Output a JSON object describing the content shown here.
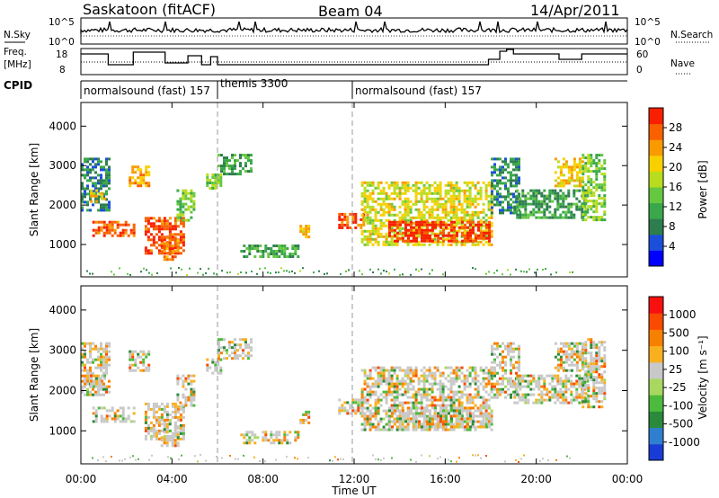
{
  "header": {
    "station": "Saskatoon (fitACF)",
    "beam": "Beam 04",
    "date": "14/Apr/2011"
  },
  "noise_panel": {
    "left_label": "N.Sky",
    "right_label": "N.Search",
    "left_ticks": [
      "10^5",
      "10^0"
    ],
    "right_ticks": [
      "10^5",
      "10^0"
    ]
  },
  "freq_panel": {
    "left_label_line1": "Freq.",
    "left_label_line2": "[MHz]",
    "right_label": "Nave",
    "left_ticks": [
      "18",
      "8"
    ],
    "right_ticks": [
      "60",
      "0"
    ]
  },
  "cpid_panel": {
    "label": "CPID",
    "segments": [
      {
        "name": "normalsound (fast) 157",
        "start_hour": 0.0
      },
      {
        "name": "themis 3300",
        "start_hour": 6.0
      },
      {
        "name": "normalsound (fast) 157",
        "start_hour": 12.0
      }
    ]
  },
  "power_panel": {
    "ylabel": "Slant Range [km]",
    "y_ticks": [
      "4000",
      "3000",
      "2000",
      "1000"
    ],
    "colorbar_label": "Power [dB]",
    "colorbar_ticks": [
      "28",
      "24",
      "20",
      "16",
      "12",
      "8",
      "4"
    ],
    "colors": [
      "#0000ff",
      "#1c4fd9",
      "#2e7d4e",
      "#3aa84a",
      "#66c840",
      "#b8dc1e",
      "#f8d000",
      "#f89a00",
      "#f86000",
      "#f82000"
    ]
  },
  "velocity_panel": {
    "ylabel": "Slant Range [km]",
    "y_ticks": [
      "4000",
      "3000",
      "2000",
      "1000"
    ],
    "colorbar_label": "Velocity [m s⁻¹]",
    "colorbar_ticks": [
      "1000",
      "500",
      "100",
      "25",
      "-25",
      "-100",
      "-500",
      "-1000"
    ],
    "colors": [
      "#1a3cd6",
      "#2f7fd0",
      "#2a8a3c",
      "#4cba3c",
      "#a8d860",
      "#c8c8c8",
      "#f8b020",
      "#f88000",
      "#f84a00",
      "#f81010"
    ]
  },
  "x_axis": {
    "label": "Time UT",
    "ticks": [
      "00:00",
      "04:00",
      "08:00",
      "12:00",
      "16:00",
      "20:00",
      "00:00"
    ]
  },
  "chart_data": {
    "type": "heatmap",
    "title": "Saskatoon (fitACF) Beam 04 14/Apr/2011",
    "x_label": "Time UT",
    "x_range_hours": [
      0,
      24
    ],
    "y_label": "Slant Range [km]",
    "y_range_km": [
      180,
      4600
    ],
    "power_scale_db": [
      0,
      30
    ],
    "velocity_scale_ms": [
      -1000,
      1000
    ],
    "frequency_range_mhz": [
      8,
      18
    ],
    "nave_range": [
      0,
      60
    ],
    "power_regions": [
      {
        "t0": 0.0,
        "t1": 1.2,
        "r0": 1900,
        "r1": 3200,
        "db": 8
      },
      {
        "t0": 0.4,
        "t1": 1.0,
        "r0": 2100,
        "r1": 2400,
        "db": 20
      },
      {
        "t0": 0.5,
        "t1": 2.3,
        "r0": 1200,
        "r1": 1600,
        "db": 26
      },
      {
        "t0": 2.1,
        "t1": 3.0,
        "r0": 2500,
        "r1": 3000,
        "db": 22
      },
      {
        "t0": 2.8,
        "t1": 4.5,
        "r0": 800,
        "r1": 1700,
        "db": 27
      },
      {
        "t0": 3.5,
        "t1": 4.3,
        "r0": 600,
        "r1": 1200,
        "db": 24
      },
      {
        "t0": 4.2,
        "t1": 5.0,
        "r0": 1600,
        "r1": 2400,
        "db": 14
      },
      {
        "t0": 5.5,
        "t1": 6.2,
        "r0": 2400,
        "r1": 2800,
        "db": 14
      },
      {
        "t0": 6.0,
        "t1": 7.5,
        "r0": 2800,
        "r1": 3300,
        "db": 10
      },
      {
        "t0": 7.0,
        "t1": 9.5,
        "r0": 700,
        "r1": 1000,
        "db": 10
      },
      {
        "t0": 9.6,
        "t1": 10.0,
        "r0": 1200,
        "r1": 1500,
        "db": 20
      },
      {
        "t0": 11.3,
        "t1": 12.4,
        "r0": 1400,
        "r1": 1800,
        "db": 26
      },
      {
        "t0": 12.3,
        "t1": 18.0,
        "r0": 1000,
        "r1": 2600,
        "db": 18
      },
      {
        "t0": 13.5,
        "t1": 18.0,
        "r0": 1100,
        "r1": 1600,
        "db": 28
      },
      {
        "t0": 18.0,
        "t1": 19.3,
        "r0": 1800,
        "r1": 3200,
        "db": 8
      },
      {
        "t0": 19.0,
        "t1": 22.2,
        "r0": 1700,
        "r1": 2400,
        "db": 10
      },
      {
        "t0": 20.8,
        "t1": 22.0,
        "r0": 2500,
        "r1": 3200,
        "db": 20
      },
      {
        "t0": 22.0,
        "t1": 23.0,
        "r0": 1600,
        "r1": 3300,
        "db": 14
      }
    ]
  }
}
